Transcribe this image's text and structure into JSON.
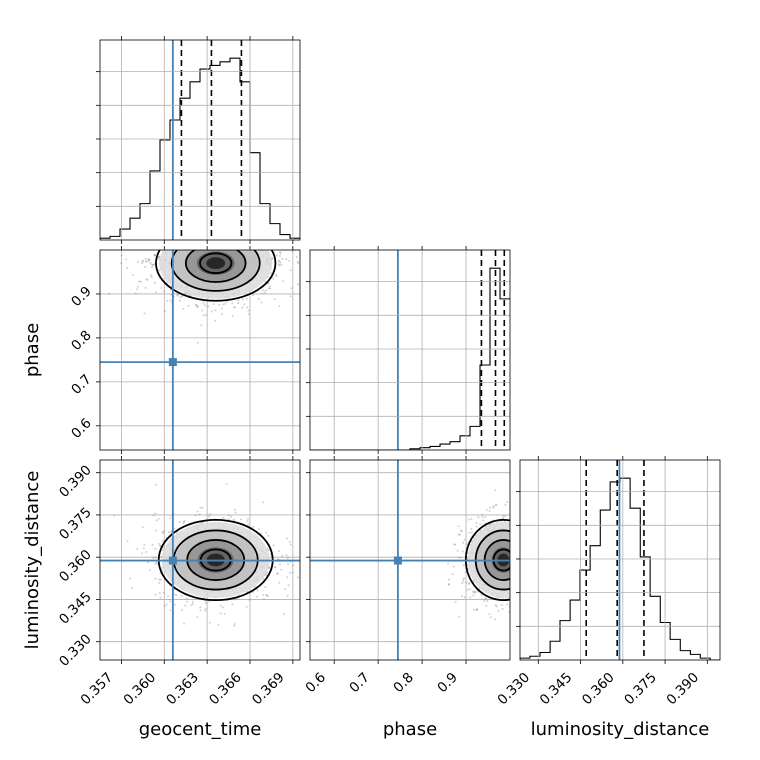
{
  "figure": {
    "type": "corner",
    "parameters": [
      "geocent_time",
      "phase",
      "luminosity_distance"
    ],
    "xlabels": [
      "geocent_time",
      "phase",
      "luminosity_distance"
    ],
    "ylabels": [
      "",
      "phase",
      "luminosity_distance"
    ],
    "colors": {
      "truth": "#4682b4",
      "hist": "#000000",
      "contour": "#000000",
      "grid": "#b0b0b0"
    }
  },
  "chart_data": [
    {
      "type": "histogram",
      "panel": "geocent_time-marginal",
      "xlim": [
        0.3555,
        0.3695
      ],
      "xticks": [
        0.357,
        0.36,
        0.363,
        0.366,
        0.369
      ],
      "xticklabels": [
        "0.357",
        "0.360",
        "0.363",
        "0.366",
        "0.369"
      ],
      "bins": [
        0.3555,
        0.3562,
        0.3569,
        0.3576,
        0.3583,
        0.359,
        0.3597,
        0.3604,
        0.3611,
        0.3618,
        0.3625,
        0.3632,
        0.3639,
        0.3646,
        0.3653,
        0.366,
        0.3667,
        0.3674,
        0.3681,
        0.3688,
        0.3695
      ],
      "counts": [
        1,
        2,
        6,
        12,
        20,
        38,
        55,
        66,
        78,
        87,
        94,
        96,
        98,
        100,
        87,
        48,
        20,
        9,
        3,
        1
      ],
      "quantiles": [
        0.3612,
        0.3633,
        0.3654
      ],
      "truth": 0.3606
    },
    {
      "type": "histogram",
      "panel": "phase-marginal",
      "xlim": [
        0.545,
        1.0
      ],
      "xticks": [
        0.6,
        0.7,
        0.8,
        0.9
      ],
      "xticklabels": [
        "0.6",
        "0.7",
        "0.8",
        "0.9"
      ],
      "bins": [
        0.545,
        0.5678,
        0.5905,
        0.6133,
        0.636,
        0.6588,
        0.6815,
        0.7043,
        0.727,
        0.7498,
        0.7725,
        0.7953,
        0.818,
        0.8408,
        0.8635,
        0.8863,
        0.909,
        0.9318,
        0.9545,
        0.9773,
        1.0
      ],
      "counts": [
        0,
        0,
        0,
        0,
        0,
        0,
        0,
        0,
        0,
        0,
        0.5,
        1,
        1.5,
        2.5,
        3.5,
        6,
        10,
        36,
        77,
        64
      ],
      "quantiles": [
        0.935,
        0.967,
        0.987
      ],
      "truth": 0.745
    },
    {
      "type": "histogram",
      "panel": "luminosity_distance-marginal",
      "xlim": [
        0.3235,
        0.3945
      ],
      "xticks": [
        0.33,
        0.345,
        0.36,
        0.375,
        0.39
      ],
      "xticklabels": [
        "0.330",
        "0.345",
        "0.360",
        "0.375",
        "0.390"
      ],
      "bins": [
        0.3235,
        0.327,
        0.3306,
        0.3342,
        0.3377,
        0.3413,
        0.3448,
        0.3484,
        0.352,
        0.3555,
        0.359,
        0.3626,
        0.3662,
        0.3697,
        0.3733,
        0.3768,
        0.3804,
        0.384,
        0.3875,
        0.391,
        0.3945
      ],
      "counts": [
        1,
        2,
        4,
        10,
        21,
        32,
        48,
        61,
        80,
        95,
        97,
        81,
        55,
        34,
        20,
        11,
        5,
        3,
        1,
        0
      ],
      "quantiles": [
        0.347,
        0.358,
        0.3675
      ],
      "truth": 0.3588
    },
    {
      "type": "scatter",
      "panel": "geocent_time-vs-phase",
      "x": "geocent_time",
      "y": "phase",
      "xlim": [
        0.3555,
        0.3695
      ],
      "ylim": [
        0.545,
        1.0
      ],
      "yticks": [
        0.6,
        0.7,
        0.8,
        0.9
      ],
      "yticklabels": [
        "0.6",
        "0.7",
        "0.8",
        "0.9"
      ],
      "center": [
        0.3636,
        0.97
      ],
      "spread": [
        0.0022,
        0.045
      ],
      "truth": [
        0.3606,
        0.745
      ]
    },
    {
      "type": "scatter",
      "panel": "geocent_time-vs-luminosity_distance",
      "x": "geocent_time",
      "y": "luminosity_distance",
      "xlim": [
        0.3555,
        0.3695
      ],
      "ylim": [
        0.3235,
        0.3945
      ],
      "yticks": [
        0.33,
        0.345,
        0.36,
        0.375,
        0.39
      ],
      "yticklabels": [
        "0.330",
        "0.345",
        "0.360",
        "0.375",
        "0.390"
      ],
      "center": [
        0.3636,
        0.359
      ],
      "spread": [
        0.0021,
        0.0075
      ],
      "truth": [
        0.3606,
        0.3588
      ]
    },
    {
      "type": "scatter",
      "panel": "phase-vs-luminosity_distance",
      "x": "phase",
      "y": "luminosity_distance",
      "xlim": [
        0.545,
        1.0
      ],
      "ylim": [
        0.3235,
        0.3945
      ],
      "center": [
        0.985,
        0.359
      ],
      "spread": [
        0.045,
        0.0075
      ],
      "truth": [
        0.745,
        0.3588
      ]
    }
  ]
}
